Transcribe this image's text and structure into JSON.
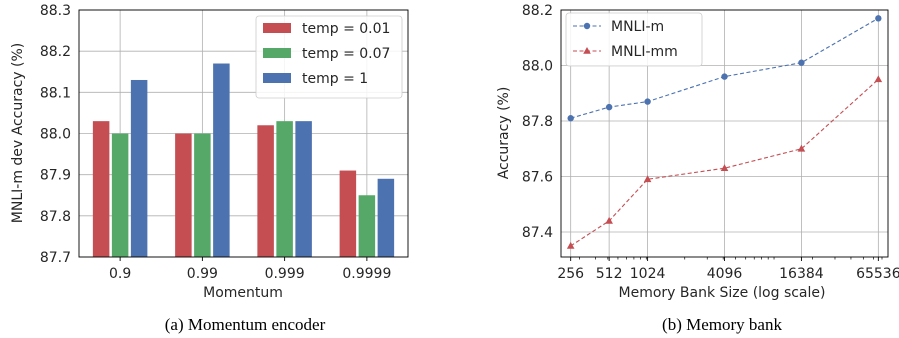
{
  "chart_data": [
    {
      "type": "bar",
      "caption": "(a) Momentum encoder",
      "categories": [
        "0.9",
        "0.99",
        "0.999",
        "0.9999"
      ],
      "series": [
        {
          "name": "temp = 0.01",
          "color": "#c44e52",
          "values": [
            88.03,
            88.0,
            88.02,
            87.91
          ]
        },
        {
          "name": "temp = 0.07",
          "color": "#55a868",
          "values": [
            88.0,
            88.0,
            88.03,
            87.85
          ]
        },
        {
          "name": "temp = 1",
          "color": "#4c72b0",
          "values": [
            88.13,
            88.17,
            88.03,
            87.89
          ]
        }
      ],
      "xlabel": "Momentum",
      "ylabel": "MNLI-m dev Accuracy (%)",
      "ylim": [
        87.7,
        88.3
      ],
      "yticks": [
        "87.7",
        "87.8",
        "87.9",
        "88.0",
        "88.1",
        "88.2",
        "88.3"
      ],
      "grid": true,
      "legend": "top-right"
    },
    {
      "type": "line",
      "caption": "(b) Memory bank",
      "x": [
        256,
        512,
        1024,
        4096,
        16384,
        65536
      ],
      "xticks": [
        "256",
        "512",
        "1024",
        "4096",
        "16384",
        "65536"
      ],
      "xscale": "log",
      "series": [
        {
          "name": "MNLI-m",
          "color": "#4c72b0",
          "marker": "circle",
          "values": [
            87.81,
            87.85,
            87.87,
            87.96,
            88.01,
            88.17
          ]
        },
        {
          "name": "MNLI-mm",
          "color": "#c44e52",
          "marker": "triangle",
          "values": [
            87.35,
            87.44,
            87.59,
            87.63,
            87.7,
            87.95
          ]
        }
      ],
      "xlabel": "Memory Bank Size (log scale)",
      "ylabel": "Accuracy (%)",
      "ylim": [
        87.31,
        88.2
      ],
      "yticks": [
        "87.4",
        "87.6",
        "87.8",
        "88.0",
        "88.2"
      ],
      "grid": true,
      "legend": "top-left"
    }
  ]
}
